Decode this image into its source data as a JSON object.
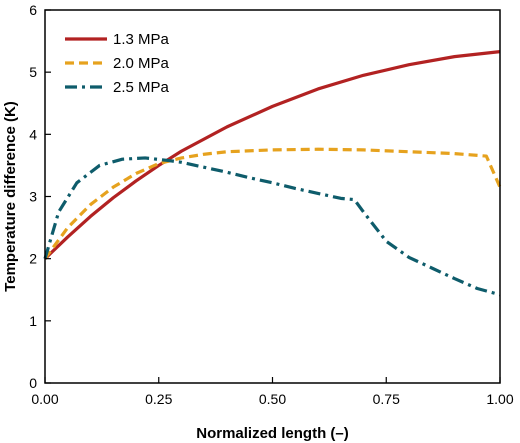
{
  "chart_data": {
    "type": "line",
    "title": "",
    "xlabel": "Normalized length (–)",
    "ylabel": "Temperature difference (K)",
    "xlim": [
      0,
      1
    ],
    "ylim": [
      0,
      6
    ],
    "xticks": [
      "0.00",
      "0.25",
      "0.50",
      "0.75",
      "1.00"
    ],
    "yticks": [
      "0",
      "1",
      "2",
      "3",
      "4",
      "5",
      "6"
    ],
    "grid": false,
    "legend_position": "top-left",
    "series": [
      {
        "name": "1.3 MPa",
        "color": "#b22222",
        "dash": "solid",
        "x": [
          0.0,
          0.05,
          0.1,
          0.15,
          0.2,
          0.25,
          0.3,
          0.4,
          0.5,
          0.6,
          0.7,
          0.8,
          0.9,
          1.0
        ],
        "y": [
          2.0,
          2.35,
          2.68,
          2.98,
          3.25,
          3.5,
          3.73,
          4.12,
          4.45,
          4.73,
          4.95,
          5.12,
          5.25,
          5.33
        ]
      },
      {
        "name": "2.0 MPa",
        "color": "#e6a21e",
        "dash": "dashed",
        "x": [
          0.0,
          0.05,
          0.1,
          0.15,
          0.2,
          0.25,
          0.3,
          0.35,
          0.4,
          0.5,
          0.6,
          0.7,
          0.8,
          0.9,
          0.97,
          1.0
        ],
        "y": [
          2.0,
          2.5,
          2.87,
          3.15,
          3.37,
          3.53,
          3.62,
          3.68,
          3.72,
          3.75,
          3.76,
          3.75,
          3.72,
          3.69,
          3.65,
          3.15
        ]
      },
      {
        "name": "2.5 MPa",
        "color": "#0e5c6b",
        "dash": "dashdot",
        "x": [
          0.0,
          0.03,
          0.07,
          0.12,
          0.17,
          0.22,
          0.27,
          0.3,
          0.35,
          0.4,
          0.45,
          0.5,
          0.55,
          0.6,
          0.65,
          0.68,
          0.7,
          0.75,
          0.8,
          0.85,
          0.9,
          0.95,
          1.0
        ],
        "y": [
          2.0,
          2.75,
          3.22,
          3.5,
          3.6,
          3.62,
          3.58,
          3.55,
          3.47,
          3.39,
          3.3,
          3.22,
          3.13,
          3.05,
          2.97,
          2.95,
          2.75,
          2.28,
          2.02,
          1.85,
          1.68,
          1.52,
          1.42
        ]
      }
    ]
  }
}
